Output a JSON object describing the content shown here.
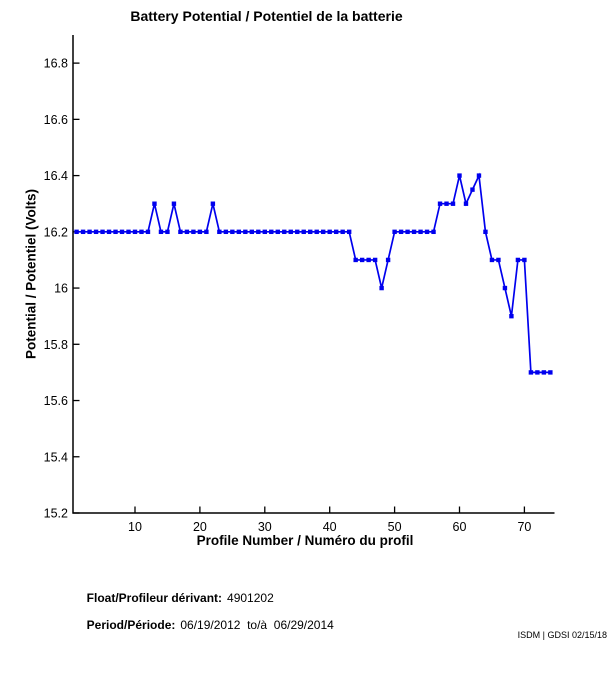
{
  "title": "Battery Potential / Potentiel de la batterie",
  "chart_data": {
    "type": "line",
    "title": "Battery Potential / Potentiel de la batterie",
    "xlabel": "Profile Number / Numéro du profil",
    "ylabel": "Potential / Potentiel (Volts)",
    "line_color": "#0000ee",
    "marker": "square",
    "grid": false,
    "legend": "none",
    "xlim": [
      0.5,
      74.6
    ],
    "ylim": [
      15.2,
      16.9
    ],
    "xticks": [
      10,
      20,
      30,
      40,
      50,
      60,
      70
    ],
    "xtick_labels": [
      "10",
      "20",
      "30",
      "40",
      "50",
      "60",
      "70"
    ],
    "yticks": [
      15.2,
      15.4,
      15.6,
      15.8,
      16.0,
      16.2,
      16.4,
      16.6,
      16.8
    ],
    "ytick_labels": [
      "15.2",
      "15.4",
      "15.6",
      "15.8",
      "16",
      "16.2",
      "16.4",
      "16.6",
      "16.8"
    ],
    "x": [
      1,
      2,
      3,
      4,
      5,
      6,
      7,
      8,
      9,
      10,
      11,
      12,
      13,
      14,
      15,
      16,
      17,
      18,
      19,
      20,
      21,
      22,
      23,
      24,
      25,
      26,
      27,
      28,
      29,
      30,
      31,
      32,
      33,
      34,
      35,
      36,
      37,
      38,
      39,
      40,
      41,
      42,
      43,
      44,
      45,
      46,
      47,
      48,
      49,
      50,
      51,
      52,
      53,
      54,
      55,
      56,
      57,
      58,
      59,
      60,
      61,
      62,
      63,
      64,
      65,
      66,
      67,
      68,
      69,
      70,
      71,
      72,
      73,
      74
    ],
    "y": [
      16.2,
      16.2,
      16.2,
      16.2,
      16.2,
      16.2,
      16.2,
      16.2,
      16.2,
      16.2,
      16.2,
      16.2,
      16.3,
      16.2,
      16.2,
      16.3,
      16.2,
      16.2,
      16.2,
      16.2,
      16.2,
      16.3,
      16.2,
      16.2,
      16.2,
      16.2,
      16.2,
      16.2,
      16.2,
      16.2,
      16.2,
      16.2,
      16.2,
      16.2,
      16.2,
      16.2,
      16.2,
      16.2,
      16.2,
      16.2,
      16.2,
      16.2,
      16.2,
      16.1,
      16.1,
      16.1,
      16.1,
      16.0,
      16.1,
      16.2,
      16.2,
      16.2,
      16.2,
      16.2,
      16.2,
      16.2,
      16.3,
      16.3,
      16.3,
      16.4,
      16.3,
      16.35,
      16.4,
      16.2,
      16.1,
      16.1,
      16.0,
      15.9,
      16.1,
      16.1,
      15.7,
      15.7,
      15.7,
      15.7
    ]
  },
  "footer": {
    "float_label": "Float/Profileur dérivant:",
    "float_value": "4901202",
    "period_label": "Period/Période:",
    "period_value": "06/19/2012  to/à  06/29/2014"
  },
  "credit": "ISDM | GDSI 02/15/18"
}
